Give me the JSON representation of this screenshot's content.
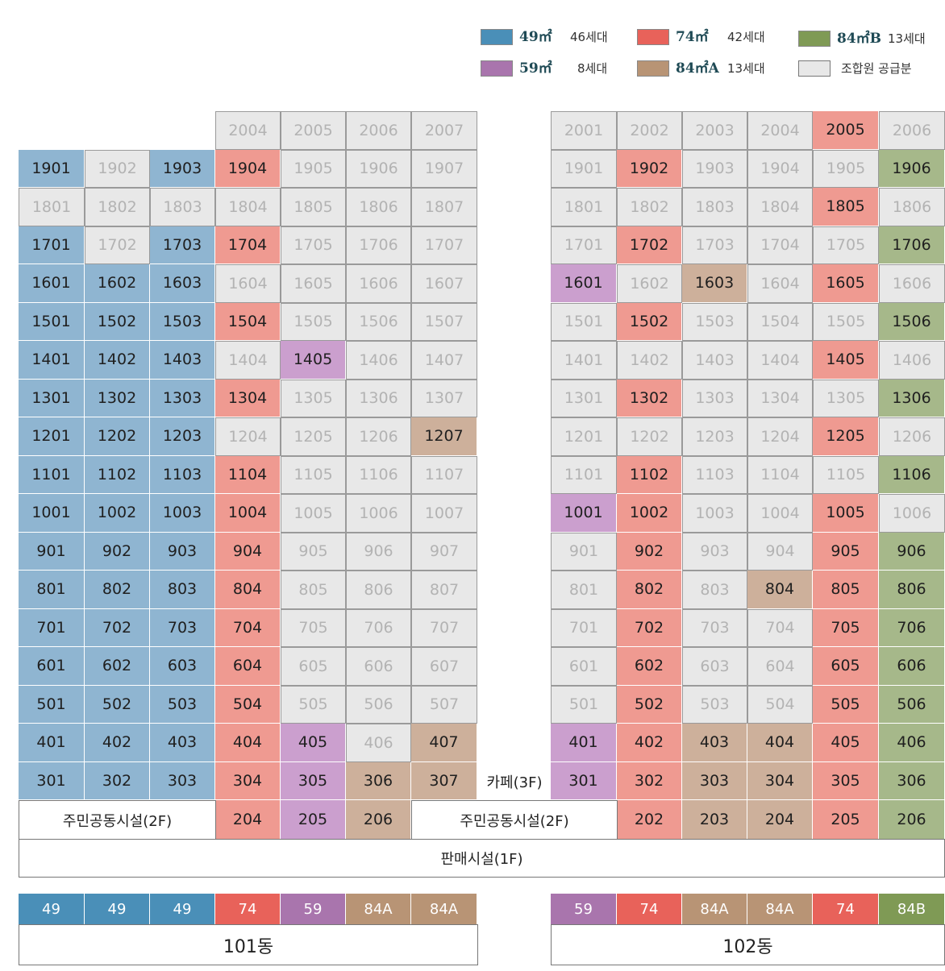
{
  "legend": [
    {
      "type": "49㎡",
      "count": "46세대",
      "color": "#4a8fb8"
    },
    {
      "type": "74㎡",
      "count": "42세대",
      "color": "#e8625a"
    },
    {
      "type": "84㎡B",
      "count": "13세대",
      "color": "#7f9a55"
    },
    {
      "type": "59㎡",
      "count": "8세대",
      "color": "#a975ad"
    },
    {
      "type": "84㎡A",
      "count": "13세대",
      "color": "#b89475"
    },
    {
      "type": "",
      "count": "조합원 공급분",
      "color": "#e8e8e8"
    }
  ],
  "colors": {
    "49": "#8fb5d1",
    "74": "#ef9a91",
    "59": "#cb9fce",
    "84A": "#cdb09b",
    "84B": "#a6b88a",
    "U": "#e8e8e8"
  },
  "type_colors": {
    "49": "#4a8fb8",
    "74": "#e8625a",
    "59": "#a975ad",
    "84A": "#b89475",
    "84B": "#7f9a55"
  },
  "building101": {
    "label": "101동",
    "types": [
      "49",
      "49",
      "49",
      "74",
      "59",
      "84A",
      "84A"
    ],
    "top_row": [
      "2004",
      "2005",
      "2006",
      "2007"
    ],
    "top_row_types": [
      "U",
      "U",
      "U",
      "U"
    ],
    "floors": [
      {
        "floor": "19",
        "types": [
          "49",
          "U",
          "49",
          "74",
          "U",
          "U",
          "U"
        ]
      },
      {
        "floor": "18",
        "types": [
          "U",
          "U",
          "U",
          "U",
          "U",
          "U",
          "U"
        ]
      },
      {
        "floor": "17",
        "types": [
          "49",
          "U",
          "49",
          "74",
          "U",
          "U",
          "U"
        ]
      },
      {
        "floor": "16",
        "types": [
          "49",
          "49",
          "49",
          "U",
          "U",
          "U",
          "U"
        ]
      },
      {
        "floor": "15",
        "types": [
          "49",
          "49",
          "49",
          "74",
          "U",
          "U",
          "U"
        ]
      },
      {
        "floor": "14",
        "types": [
          "49",
          "49",
          "49",
          "U",
          "59",
          "U",
          "U"
        ]
      },
      {
        "floor": "13",
        "types": [
          "49",
          "49",
          "49",
          "74",
          "U",
          "U",
          "U"
        ]
      },
      {
        "floor": "12",
        "types": [
          "49",
          "49",
          "49",
          "U",
          "U",
          "U",
          "84A"
        ]
      },
      {
        "floor": "11",
        "types": [
          "49",
          "49",
          "49",
          "74",
          "U",
          "U",
          "U"
        ]
      },
      {
        "floor": "10",
        "types": [
          "49",
          "49",
          "49",
          "74",
          "U",
          "U",
          "U"
        ]
      },
      {
        "floor": "9",
        "types": [
          "49",
          "49",
          "49",
          "74",
          "U",
          "U",
          "U"
        ]
      },
      {
        "floor": "8",
        "types": [
          "49",
          "49",
          "49",
          "74",
          "U",
          "U",
          "U"
        ]
      },
      {
        "floor": "7",
        "types": [
          "49",
          "49",
          "49",
          "74",
          "U",
          "U",
          "U"
        ]
      },
      {
        "floor": "6",
        "types": [
          "49",
          "49",
          "49",
          "74",
          "U",
          "U",
          "U"
        ]
      },
      {
        "floor": "5",
        "types": [
          "49",
          "49",
          "49",
          "74",
          "U",
          "U",
          "U"
        ]
      },
      {
        "floor": "4",
        "types": [
          "49",
          "49",
          "49",
          "74",
          "59",
          "U",
          "84A"
        ]
      },
      {
        "floor": "3",
        "types": [
          "49",
          "49",
          "49",
          "74",
          "59",
          "84A",
          "84A"
        ]
      }
    ],
    "second_floor": [
      {
        "unit": "204",
        "type": "74"
      },
      {
        "unit": "205",
        "type": "59"
      },
      {
        "unit": "206",
        "type": "84A"
      }
    ]
  },
  "building102": {
    "label": "102동",
    "types": [
      "59",
      "74",
      "84A",
      "84A",
      "74",
      "84B"
    ],
    "top_row": [
      "2001",
      "2002",
      "2003",
      "2004",
      "2005",
      "2006"
    ],
    "top_row_types": [
      "U",
      "U",
      "U",
      "U",
      "74",
      "U"
    ],
    "floors": [
      {
        "floor": "19",
        "types": [
          "U",
          "74",
          "U",
          "U",
          "U",
          "84B"
        ]
      },
      {
        "floor": "18",
        "types": [
          "U",
          "U",
          "U",
          "U",
          "74",
          "U"
        ]
      },
      {
        "floor": "17",
        "types": [
          "U",
          "74",
          "U",
          "U",
          "U",
          "84B"
        ]
      },
      {
        "floor": "16",
        "types": [
          "59",
          "U",
          "84A",
          "U",
          "74",
          "U"
        ]
      },
      {
        "floor": "15",
        "types": [
          "U",
          "74",
          "U",
          "U",
          "U",
          "84B"
        ]
      },
      {
        "floor": "14",
        "types": [
          "U",
          "U",
          "U",
          "U",
          "74",
          "U"
        ]
      },
      {
        "floor": "13",
        "types": [
          "U",
          "74",
          "U",
          "U",
          "U",
          "84B"
        ]
      },
      {
        "floor": "12",
        "types": [
          "U",
          "U",
          "U",
          "U",
          "74",
          "U"
        ]
      },
      {
        "floor": "11",
        "types": [
          "U",
          "74",
          "U",
          "U",
          "U",
          "84B"
        ]
      },
      {
        "floor": "10",
        "types": [
          "59",
          "74",
          "U",
          "U",
          "74",
          "U"
        ]
      },
      {
        "floor": "9",
        "types": [
          "U",
          "74",
          "U",
          "U",
          "74",
          "84B"
        ]
      },
      {
        "floor": "8",
        "types": [
          "U",
          "74",
          "U",
          "84A",
          "74",
          "84B"
        ]
      },
      {
        "floor": "7",
        "types": [
          "U",
          "74",
          "U",
          "U",
          "74",
          "84B"
        ]
      },
      {
        "floor": "6",
        "types": [
          "U",
          "74",
          "U",
          "U",
          "74",
          "84B"
        ]
      },
      {
        "floor": "5",
        "types": [
          "U",
          "74",
          "U",
          "U",
          "74",
          "84B"
        ]
      },
      {
        "floor": "4",
        "types": [
          "59",
          "74",
          "84A",
          "84A",
          "74",
          "84B"
        ]
      },
      {
        "floor": "3",
        "types": [
          "59",
          "74",
          "84A",
          "84A",
          "74",
          "84B"
        ]
      }
    ],
    "second_floor": [
      {
        "unit": "202",
        "type": "74"
      },
      {
        "unit": "203",
        "type": "84A"
      },
      {
        "unit": "204",
        "type": "84A"
      },
      {
        "unit": "205",
        "type": "74"
      },
      {
        "unit": "206",
        "type": "84B"
      }
    ]
  },
  "labels": {
    "cafe": "카페(3F)",
    "community_left": "주민공동시설(2F)",
    "community_right": "주민공동시설(2F)",
    "retail": "판매시설(1F)"
  }
}
